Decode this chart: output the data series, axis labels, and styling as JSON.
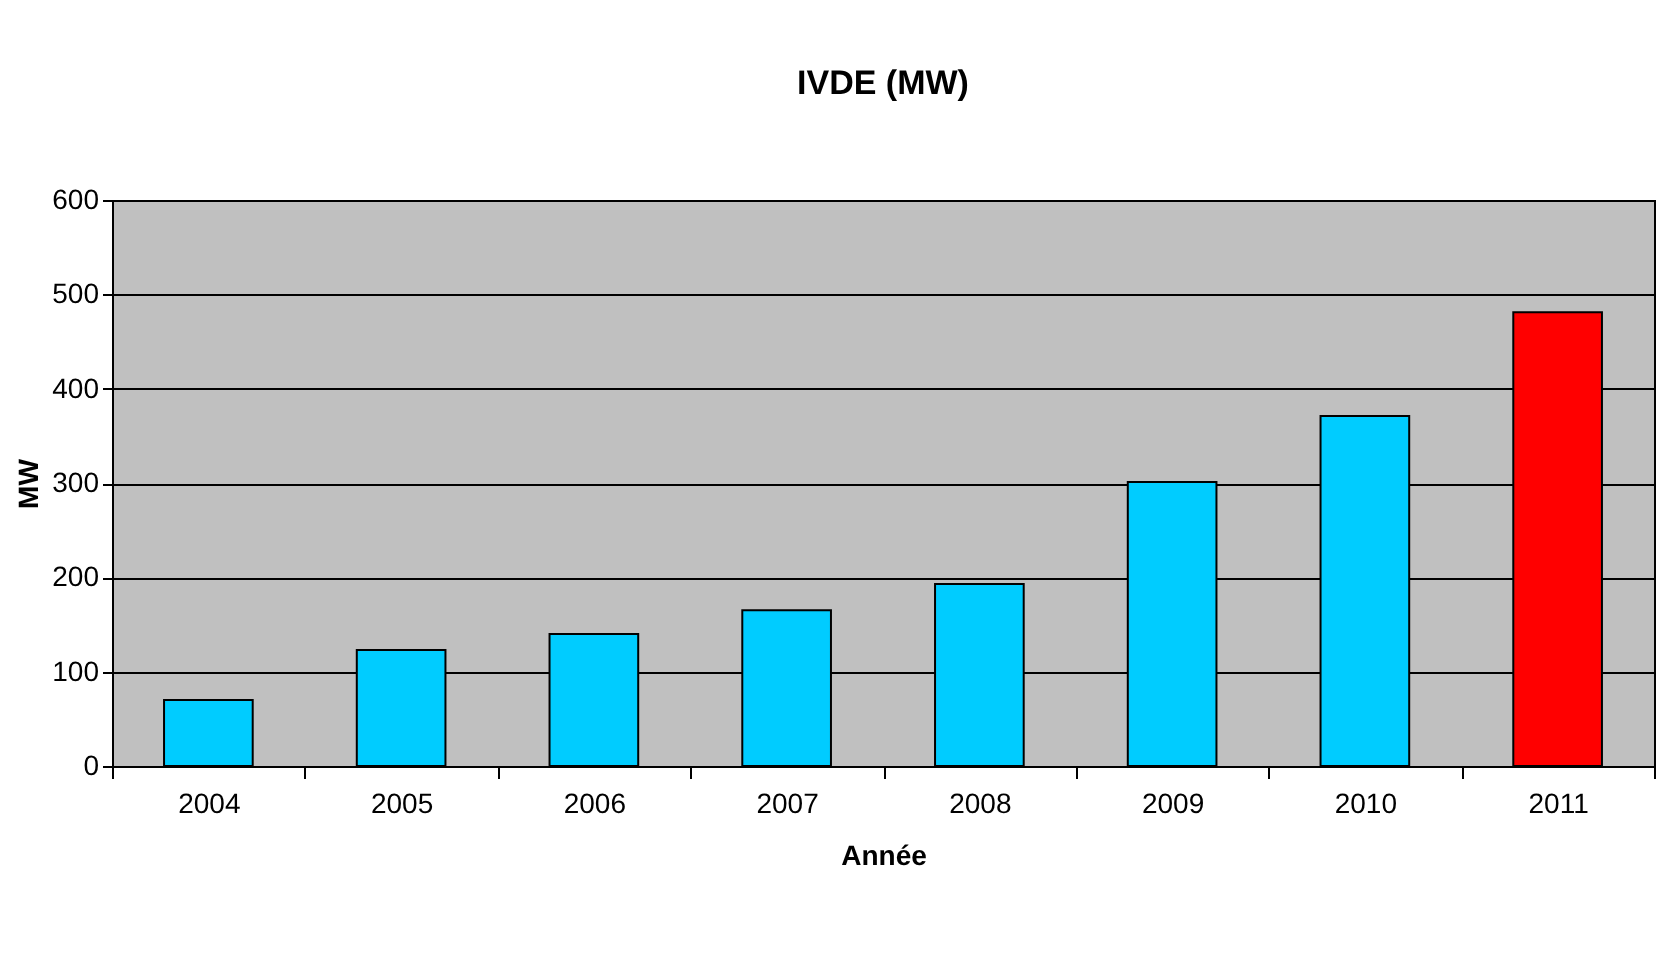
{
  "chart_data": {
    "type": "bar",
    "title": "IVDE (MW)",
    "xlabel": "Année",
    "ylabel": "MW",
    "categories": [
      "2004",
      "2005",
      "2006",
      "2007",
      "2008",
      "2009",
      "2010",
      "2011"
    ],
    "values": [
      70,
      123,
      140,
      165,
      193,
      301,
      371,
      481
    ],
    "colors": [
      "#00ccff",
      "#00ccff",
      "#00ccff",
      "#00ccff",
      "#00ccff",
      "#00ccff",
      "#00ccff",
      "#ff0000"
    ],
    "ylim": [
      0,
      600
    ],
    "yticks": [
      0,
      100,
      200,
      300,
      400,
      500,
      600
    ],
    "grid": "y",
    "legend": false
  }
}
